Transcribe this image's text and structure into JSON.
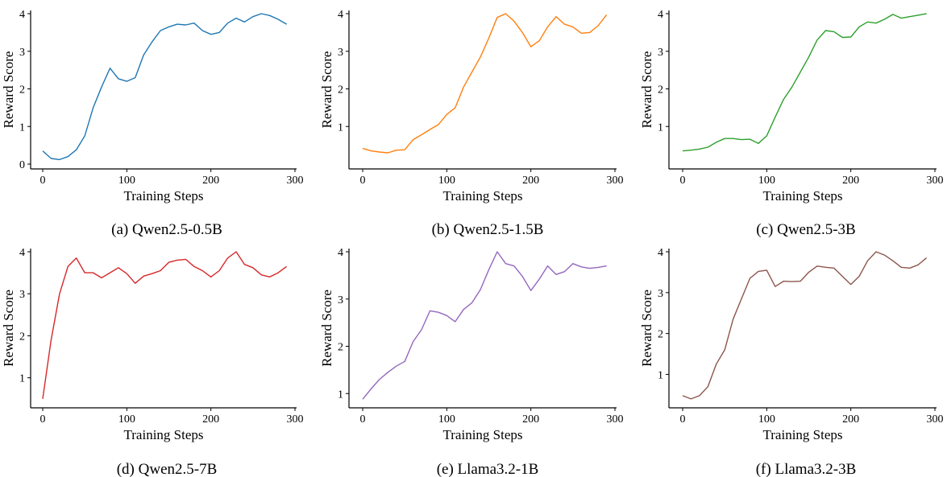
{
  "chart_data": [
    {
      "type": "line",
      "caption": "(a) Qwen2.5-0.5B",
      "xlabel": "Training Steps",
      "ylabel": "Reward Score",
      "xlim": [
        0,
        300
      ],
      "ylim": [
        0,
        4
      ],
      "xticks": [
        0,
        100,
        200,
        300
      ],
      "yticks": [
        0,
        1,
        2,
        3,
        4
      ],
      "color": "#1f77b4",
      "x": [
        0,
        10,
        20,
        30,
        40,
        50,
        60,
        70,
        80,
        90,
        100,
        110,
        120,
        130,
        140,
        150,
        160,
        170,
        180,
        190,
        200,
        210,
        220,
        230,
        240,
        250,
        260,
        270,
        280,
        290
      ],
      "y": [
        0.35,
        0.15,
        0.12,
        0.2,
        0.38,
        0.75,
        1.5,
        2.05,
        2.55,
        2.27,
        2.2,
        2.3,
        2.9,
        3.25,
        3.55,
        3.65,
        3.72,
        3.7,
        3.75,
        3.55,
        3.45,
        3.5,
        3.75,
        3.88,
        3.78,
        3.92,
        4.0,
        3.95,
        3.85,
        3.72
      ]
    },
    {
      "type": "line",
      "caption": "(b) Qwen2.5-1.5B",
      "xlabel": "Training Steps",
      "ylabel": "Reward Score",
      "xlim": [
        0,
        300
      ],
      "ylim": [
        0,
        4
      ],
      "xticks": [
        0,
        100,
        200,
        300
      ],
      "yticks": [
        1,
        2,
        3,
        4
      ],
      "color": "#ff7f0e",
      "x": [
        0,
        10,
        20,
        30,
        40,
        50,
        60,
        70,
        80,
        90,
        100,
        110,
        120,
        130,
        140,
        150,
        160,
        170,
        180,
        190,
        200,
        210,
        220,
        230,
        240,
        250,
        260,
        270,
        280,
        290
      ],
      "y": [
        0.42,
        0.35,
        0.32,
        0.3,
        0.37,
        0.38,
        0.65,
        0.78,
        0.92,
        1.05,
        1.32,
        1.5,
        2.05,
        2.45,
        2.85,
        3.35,
        3.9,
        4.0,
        3.8,
        3.5,
        3.12,
        3.28,
        3.65,
        3.92,
        3.72,
        3.65,
        3.48,
        3.5,
        3.68,
        3.97
      ]
    },
    {
      "type": "line",
      "caption": "(c) Qwen2.5-3B",
      "xlabel": "Training Steps",
      "ylabel": "Reward Score",
      "xlim": [
        0,
        300
      ],
      "ylim": [
        0,
        4
      ],
      "xticks": [
        0,
        100,
        200,
        300
      ],
      "yticks": [
        1,
        2,
        3,
        4
      ],
      "color": "#2ca02c",
      "x": [
        0,
        10,
        20,
        30,
        40,
        50,
        60,
        70,
        80,
        90,
        100,
        110,
        120,
        130,
        140,
        150,
        160,
        170,
        180,
        190,
        200,
        210,
        220,
        230,
        240,
        250,
        260,
        270,
        280,
        290
      ],
      "y": [
        0.35,
        0.37,
        0.4,
        0.45,
        0.58,
        0.68,
        0.68,
        0.65,
        0.66,
        0.55,
        0.75,
        1.25,
        1.72,
        2.05,
        2.45,
        2.85,
        3.3,
        3.55,
        3.52,
        3.37,
        3.38,
        3.65,
        3.78,
        3.75,
        3.85,
        3.98,
        3.88,
        3.92,
        3.96,
        4.0
      ]
    },
    {
      "type": "line",
      "caption": "(d) Qwen2.5-7B",
      "xlabel": "Training Steps",
      "ylabel": "Reward Score",
      "xlim": [
        0,
        300
      ],
      "ylim": [
        0.4,
        4
      ],
      "xticks": [
        0,
        100,
        200,
        300
      ],
      "yticks": [
        1,
        2,
        3,
        4
      ],
      "color": "#d62728",
      "x": [
        0,
        10,
        20,
        30,
        40,
        50,
        60,
        70,
        80,
        90,
        100,
        110,
        120,
        130,
        140,
        150,
        160,
        170,
        180,
        190,
        200,
        210,
        220,
        230,
        240,
        250,
        260,
        270,
        280,
        290
      ],
      "y": [
        0.5,
        1.9,
        3.0,
        3.65,
        3.85,
        3.5,
        3.5,
        3.38,
        3.5,
        3.62,
        3.48,
        3.25,
        3.42,
        3.48,
        3.55,
        3.75,
        3.8,
        3.82,
        3.65,
        3.55,
        3.4,
        3.55,
        3.85,
        4.0,
        3.7,
        3.62,
        3.45,
        3.4,
        3.5,
        3.65
      ]
    },
    {
      "type": "line",
      "caption": "(e) Llama3.2-1B",
      "xlabel": "Training Steps",
      "ylabel": "Reward Score",
      "xlim": [
        0,
        300
      ],
      "ylim": [
        0.8,
        4
      ],
      "xticks": [
        0,
        100,
        200,
        300
      ],
      "yticks": [
        1,
        2,
        3,
        4
      ],
      "color": "#9467bd",
      "x": [
        0,
        10,
        20,
        30,
        40,
        50,
        60,
        70,
        80,
        90,
        100,
        110,
        120,
        130,
        140,
        150,
        160,
        170,
        180,
        190,
        200,
        210,
        220,
        230,
        240,
        250,
        260,
        270,
        280,
        290
      ],
      "y": [
        0.88,
        1.1,
        1.3,
        1.45,
        1.58,
        1.68,
        2.1,
        2.35,
        2.75,
        2.72,
        2.65,
        2.52,
        2.78,
        2.92,
        3.2,
        3.62,
        4.0,
        3.75,
        3.7,
        3.48,
        3.18,
        3.42,
        3.7,
        3.52,
        3.58,
        3.75,
        3.68,
        3.65,
        3.67,
        3.7
      ]
    },
    {
      "type": "line",
      "caption": "(f) Llama3.2-3B",
      "xlabel": "Training Steps",
      "ylabel": "Reward Score",
      "xlim": [
        0,
        300
      ],
      "ylim": [
        0.3,
        4
      ],
      "xticks": [
        0,
        100,
        200,
        300
      ],
      "yticks": [
        1,
        2,
        3,
        4
      ],
      "color": "#8c564b",
      "x": [
        0,
        10,
        20,
        30,
        40,
        50,
        60,
        70,
        80,
        90,
        100,
        110,
        120,
        130,
        140,
        150,
        160,
        170,
        180,
        190,
        200,
        210,
        220,
        230,
        240,
        250,
        260,
        270,
        280,
        290
      ],
      "y": [
        0.48,
        0.4,
        0.48,
        0.7,
        1.25,
        1.6,
        2.35,
        2.85,
        3.35,
        3.52,
        3.55,
        3.15,
        3.28,
        3.27,
        3.28,
        3.5,
        3.65,
        3.62,
        3.6,
        3.4,
        3.2,
        3.4,
        3.78,
        4.0,
        3.92,
        3.78,
        3.62,
        3.6,
        3.68,
        3.85
      ]
    }
  ]
}
